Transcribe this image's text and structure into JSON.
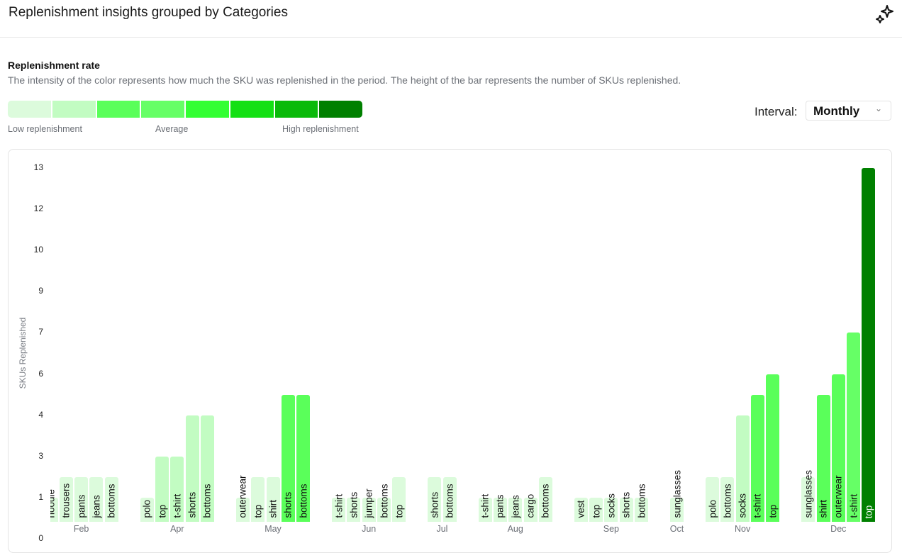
{
  "header": {
    "title": "Replenishment insights grouped by Categories",
    "icon": "sparkle-icon"
  },
  "section": {
    "title": "Replenishment rate",
    "description": "The intensity of the color represents how much the SKU was replenished in the period. The height of the bar represents the number of SKUs replenished."
  },
  "legend": {
    "colors": [
      "#dcfbdc",
      "#c2fcc2",
      "#5aff5a",
      "#66ff66",
      "#33ff33",
      "#14e014",
      "#0aba0a",
      "#008000"
    ],
    "low": "Low replenishment",
    "average": "Average",
    "high": "High replenishment"
  },
  "interval": {
    "label": "Interval:",
    "value": "Monthly"
  },
  "chart_data": {
    "type": "bar",
    "ylabel": "SKUs Replenished",
    "ylim": [
      0,
      13
    ],
    "yticks": [
      0,
      1,
      3,
      4,
      6,
      7,
      9,
      10,
      12,
      13
    ],
    "groups": [
      {
        "month": "Feb",
        "bars": [
          {
            "label": "hoodie",
            "value": 1,
            "level": 0
          },
          {
            "label": "trousers",
            "value": 2,
            "level": 0
          },
          {
            "label": "pants",
            "value": 2,
            "level": 0
          },
          {
            "label": "jeans",
            "value": 2,
            "level": 0
          },
          {
            "label": "bottoms",
            "value": 2,
            "level": 0
          }
        ]
      },
      {
        "month": "Apr",
        "bars": [
          {
            "label": "polo",
            "value": 1,
            "level": 0
          },
          {
            "label": "top",
            "value": 3,
            "level": 1
          },
          {
            "label": "t-shirt",
            "value": 3,
            "level": 1
          },
          {
            "label": "shorts",
            "value": 4,
            "level": 1
          },
          {
            "label": "bottoms",
            "value": 4,
            "level": 1
          }
        ]
      },
      {
        "month": "May",
        "bars": [
          {
            "label": "outerwear",
            "value": 1,
            "level": 0
          },
          {
            "label": "top",
            "value": 2,
            "level": 0
          },
          {
            "label": "shirt",
            "value": 2,
            "level": 0
          },
          {
            "label": "shorts",
            "value": 5,
            "level": 2
          },
          {
            "label": "bottoms",
            "value": 5,
            "level": 2
          }
        ]
      },
      {
        "month": "Jun",
        "bars": [
          {
            "label": "t-shirt",
            "value": 1,
            "level": 0
          },
          {
            "label": "shorts",
            "value": 1,
            "level": 0
          },
          {
            "label": "jumper",
            "value": 1,
            "level": 0
          },
          {
            "label": "bottoms",
            "value": 1,
            "level": 0
          },
          {
            "label": "top",
            "value": 2,
            "level": 0
          }
        ]
      },
      {
        "month": "Jul",
        "bars": [
          {
            "label": "shorts",
            "value": 2,
            "level": 0
          },
          {
            "label": "bottoms",
            "value": 2,
            "level": 0
          }
        ]
      },
      {
        "month": "Aug",
        "bars": [
          {
            "label": "t-shirt",
            "value": 1,
            "level": 0
          },
          {
            "label": "pants",
            "value": 1,
            "level": 0
          },
          {
            "label": "jeans",
            "value": 1,
            "level": 0
          },
          {
            "label": "cargo",
            "value": 1,
            "level": 0
          },
          {
            "label": "bottoms",
            "value": 2,
            "level": 0
          }
        ]
      },
      {
        "month": "Sep",
        "bars": [
          {
            "label": "vest",
            "value": 1,
            "level": 0
          },
          {
            "label": "top",
            "value": 1,
            "level": 0
          },
          {
            "label": "socks",
            "value": 1,
            "level": 0
          },
          {
            "label": "shorts",
            "value": 1,
            "level": 0
          },
          {
            "label": "bottoms",
            "value": 1,
            "level": 0
          }
        ]
      },
      {
        "month": "Oct",
        "bars": [
          {
            "label": "sunglasses",
            "value": 1,
            "level": 0
          }
        ]
      },
      {
        "month": "Nov",
        "bars": [
          {
            "label": "polo",
            "value": 2,
            "level": 0
          },
          {
            "label": "bottoms",
            "value": 2,
            "level": 0
          },
          {
            "label": "socks",
            "value": 4,
            "level": 1
          },
          {
            "label": "t-shirt",
            "value": 5,
            "level": 2
          },
          {
            "label": "top",
            "value": 6,
            "level": 2
          }
        ]
      },
      {
        "month": "Dec",
        "bars": [
          {
            "label": "sunglasses",
            "value": 2,
            "level": 0
          },
          {
            "label": "shirt",
            "value": 5,
            "level": 2
          },
          {
            "label": "outerwear",
            "value": 6,
            "level": 2
          },
          {
            "label": "t-shirt",
            "value": 7,
            "level": 3
          },
          {
            "label": "top",
            "value": 13,
            "level": 7
          }
        ]
      }
    ]
  }
}
